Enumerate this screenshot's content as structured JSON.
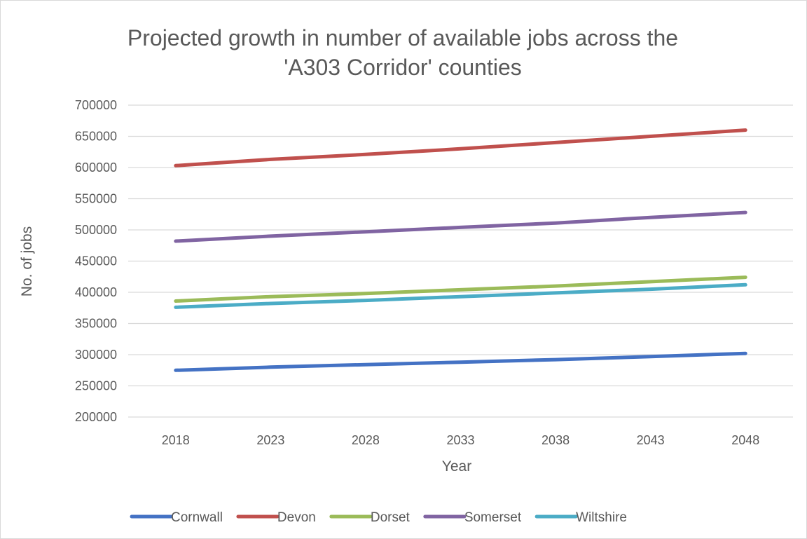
{
  "chart_data": {
    "type": "line",
    "title_lines": [
      "Projected growth in number of available jobs across the",
      "'A303 Corridor' counties"
    ],
    "xlabel": "Year",
    "ylabel": "No. of jobs",
    "x": [
      "2018",
      "2023",
      "2028",
      "2033",
      "2038",
      "2043",
      "2048"
    ],
    "ylim": [
      200000,
      700000
    ],
    "yticks": [
      "200000",
      "250000",
      "300000",
      "350000",
      "400000",
      "450000",
      "500000",
      "550000",
      "600000",
      "650000",
      "700000"
    ],
    "grid": "horizontal",
    "legend_position": "bottom",
    "series": [
      {
        "name": "Cornwall",
        "color": "#4472c4",
        "values": [
          275000,
          280000,
          284000,
          288000,
          292000,
          297000,
          302000
        ]
      },
      {
        "name": "Devon",
        "color": "#c0504d",
        "values": [
          603000,
          613000,
          621000,
          630000,
          640000,
          650000,
          660000
        ]
      },
      {
        "name": "Dorset",
        "color": "#9bbb59",
        "values": [
          386000,
          393000,
          398000,
          404000,
          410000,
          417000,
          424000
        ]
      },
      {
        "name": "Somerset",
        "color": "#8064a2",
        "values": [
          482000,
          490000,
          497000,
          504000,
          511000,
          520000,
          528000
        ]
      },
      {
        "name": "Wiltshire",
        "color": "#4bacc6",
        "values": [
          376000,
          382000,
          387000,
          393000,
          399000,
          405000,
          412000
        ]
      }
    ]
  }
}
